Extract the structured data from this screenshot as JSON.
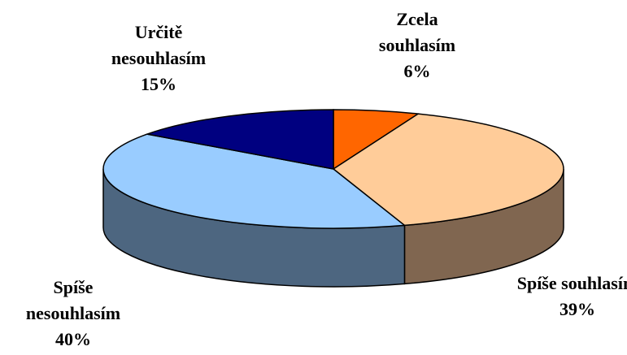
{
  "chart_data": {
    "type": "pie3d",
    "categories": [
      "Zcela souhlasím",
      "Spíše souhlasím",
      "Spíše nesouhlasím",
      "Určitě nesouhlasím"
    ],
    "values": [
      6,
      39,
      40,
      15
    ],
    "value_labels": [
      "6%",
      "39%",
      "40%",
      "15%"
    ],
    "colors": [
      "#ff6600",
      "#ffcc99",
      "#99ccff",
      "#000080"
    ],
    "side_colors": [
      "#803300",
      "#806650",
      "#4d6680",
      "#000040"
    ]
  }
}
